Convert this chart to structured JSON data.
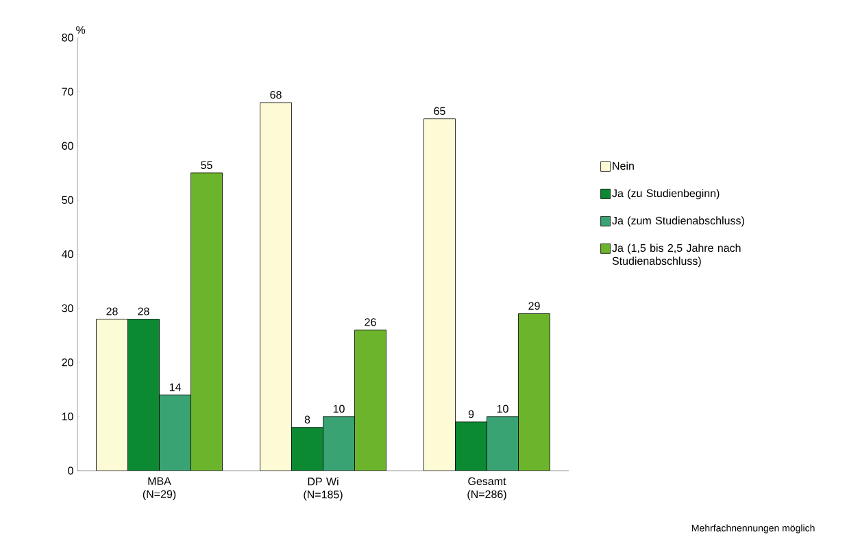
{
  "chart_data": {
    "type": "bar",
    "ylabel": "%",
    "categories": [
      "MBA (N=29)",
      "DP Wi (N=185)",
      "Gesamt (N=286)"
    ],
    "series": [
      {
        "name": "Nein",
        "color": "#fdfbd6",
        "values": [
          28,
          68,
          65
        ]
      },
      {
        "name": "Ja (zu Studienbeginn)",
        "color": "#0b8a32",
        "values": [
          28,
          8,
          9
        ]
      },
      {
        "name": "Ja (zum Studienabschluss)",
        "color": "#3aa374",
        "values": [
          14,
          10,
          10
        ]
      },
      {
        "name": "Ja (1,5 bis 2,5 Jahre nach Studienabschluss)",
        "color": "#6cb42c",
        "values": [
          55,
          26,
          29
        ]
      }
    ],
    "ylim": [
      0,
      80
    ],
    "yticks": [
      0,
      10,
      20,
      30,
      40,
      50,
      60,
      70,
      80
    ],
    "data_labels": true,
    "grid": false,
    "legend": "right",
    "annotations": [
      "Mehrfachnennungen möglich"
    ]
  }
}
